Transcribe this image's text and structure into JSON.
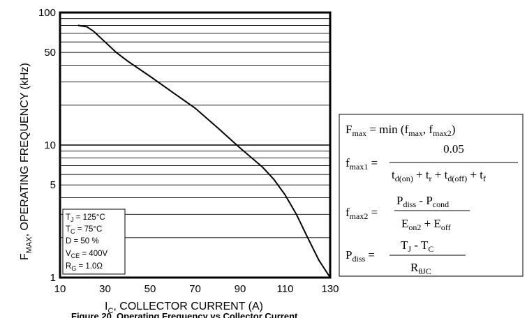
{
  "chart_data": {
    "type": "line",
    "x_axis": {
      "label_main": "I",
      "label_sub": "C",
      "label_rest": ", COLLECTOR CURRENT (A)",
      "ticks": [
        "10",
        "30",
        "50",
        "70",
        "90",
        "110",
        "130"
      ],
      "range": [
        10,
        130
      ],
      "scale": "linear",
      "grid": false
    },
    "y_axis": {
      "label_main": "F",
      "label_sub": "MAX",
      "label_rest": ", OPERATING FREQUENCY (kHz)",
      "ticks": [
        "1",
        "5",
        "10",
        "50",
        "100"
      ],
      "range": [
        1,
        100
      ],
      "scale": "log",
      "grid": true
    },
    "series": [
      {
        "x": [
          18,
          22,
          25,
          30,
          35,
          40,
          50,
          60,
          70,
          80,
          90,
          100,
          105,
          110,
          115,
          120,
          125,
          130
        ],
        "y": [
          80,
          78,
          72,
          60,
          50,
          43,
          33,
          25,
          19,
          13.5,
          9.5,
          6.8,
          5.5,
          4.2,
          3.0,
          2.0,
          1.35,
          1.0
        ]
      }
    ]
  },
  "conditions": {
    "tj": {
      "main": "T",
      "sub": "J",
      "rest": " =  125°C"
    },
    "tc": {
      "main": "T",
      "sub": "C",
      "rest": " =  75°C"
    },
    "d": {
      "text": "D = 50 %"
    },
    "vce": {
      "main": "V",
      "sub": "CE",
      "rest": " = 400V"
    },
    "rg": {
      "main": "R",
      "sub": "G",
      "rest": " = 1.0Ω"
    }
  },
  "equations": {
    "fmax": {
      "lhs": "F",
      "lhs_sub": "max",
      "rhs_a": " = min (f",
      "rhs_sub1": "max",
      "rhs_b": ", f",
      "rhs_sub2": "max2",
      "rhs_c": ")"
    },
    "fmax1": {
      "lhs": "f",
      "lhs_sub": "max1",
      "eq": " =",
      "numerator": "0.05",
      "den_t1": "t",
      "den_s1": "d(on)",
      "den_p1": " + t",
      "den_s2": "r",
      "den_p2": " + t",
      "den_s3": "d(off)",
      "den_p3": " + t",
      "den_s4": "f"
    },
    "fmax2": {
      "lhs": "f",
      "lhs_sub": "max2",
      "eq": " =",
      "num_t1": "P",
      "num_s1": "diss",
      "num_p1": " - P",
      "num_s2": "cond",
      "den_t1": "E",
      "den_s1": "on2",
      "den_p1": " + E",
      "den_s2": "off"
    },
    "pdiss": {
      "lhs": "P",
      "lhs_sub": "diss",
      "eq": " =",
      "num_t1": "T",
      "num_s1": "J",
      "num_p1": " - T",
      "num_s2": "C",
      "den_t1": "R",
      "den_s1": "θJC"
    }
  },
  "caption": "Figure 20. Operating  Frequency  vs Collector  Current"
}
